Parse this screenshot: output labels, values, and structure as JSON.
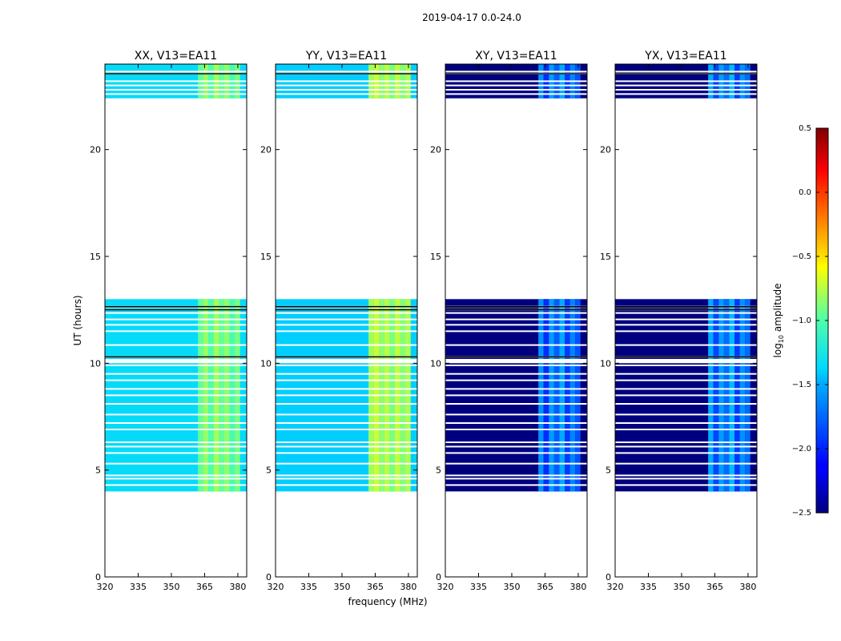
{
  "chart_data": {
    "type": "heatmap",
    "suptitle": "2019-04-17 0.0-24.0",
    "ylabel": "UT (hours)",
    "xlabel": "frequency (MHz)",
    "xlim": [
      320,
      384
    ],
    "ylim": [
      0,
      24
    ],
    "xticks": [
      320,
      335,
      350,
      365,
      380
    ],
    "yticks": [
      0,
      5,
      10,
      15,
      20
    ],
    "data_time_blocks": [
      [
        4.0,
        10.0
      ],
      [
        10.2,
        13.0
      ],
      [
        22.4,
        24.0
      ]
    ],
    "flagged_hours": [
      4.3,
      4.6,
      4.75,
      5.3,
      5.8,
      6.1,
      6.3,
      6.9,
      7.2,
      7.6,
      8.1,
      8.5,
      8.8,
      9.2,
      9.5,
      9.9,
      10.3,
      10.85,
      11.5,
      11.8,
      12.05,
      12.35,
      12.5,
      12.65,
      22.6,
      22.8,
      23.0,
      23.2,
      23.55,
      23.65
    ],
    "bright_band_mhz": [
      362,
      381
    ],
    "panels": [
      {
        "title": "XX, V13=EA11",
        "base_log10_amplitude": -1.35,
        "band_log10_amplitude": -0.95,
        "band_colour": "#bff237",
        "column_offsets_log10": [
          0.0,
          0.12,
          -0.05,
          0.15,
          0.0,
          0.1,
          -0.08,
          0.05
        ]
      },
      {
        "title": "YY, V13=EA11",
        "base_log10_amplitude": -1.4,
        "band_log10_amplitude": -0.85,
        "band_colour": "#e8f21e",
        "column_offsets_log10": [
          0.05,
          0.15,
          0.0,
          0.1,
          -0.05,
          0.12,
          -0.02,
          0.08
        ]
      },
      {
        "title": "XY, V13=EA11",
        "base_log10_amplitude": -2.5,
        "band_log10_amplitude": -1.7,
        "band_colour": "#1e9cff",
        "column_offsets_log10": [
          0.1,
          -0.3,
          0.15,
          -0.1,
          0.2,
          -0.25,
          0.05,
          -0.15
        ]
      },
      {
        "title": "YX, V13=EA11",
        "base_log10_amplitude": -2.5,
        "band_log10_amplitude": -1.65,
        "band_colour": "#26b4f0",
        "column_offsets_log10": [
          0.15,
          -0.25,
          0.1,
          -0.1,
          0.2,
          -0.3,
          0.05,
          -0.1
        ]
      }
    ],
    "colorbar": {
      "label": "log",
      "label_subscript": "10",
      "label_suffix": " amplitude",
      "min": -2.5,
      "max": 0.5,
      "ticks": [
        "0.5",
        "0.0",
        "−0.5",
        "−1.0",
        "−1.5",
        "−2.0",
        "−2.5"
      ],
      "tick_values": [
        0.5,
        0.0,
        -0.5,
        -1.0,
        -1.5,
        -2.0,
        -2.5
      ],
      "colormap": "jet"
    }
  }
}
